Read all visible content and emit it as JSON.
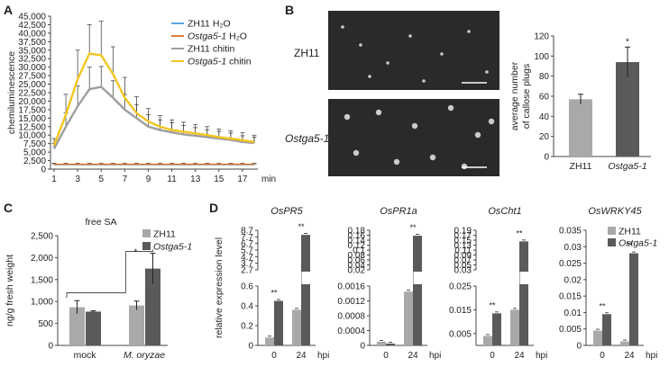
{
  "panel_letters": {
    "a": "A",
    "b": "B",
    "c": "C",
    "d": "D"
  },
  "colors": {
    "zh11_h2o": "#5ba7e0",
    "ostga_h2o": "#e07b39",
    "zh11_chitin": "#9e9e9e",
    "ostga_chitin": "#f2c61f",
    "bar_light": "#a9a9a9",
    "bar_dark": "#5a5a5a",
    "micrograph_bg": "#2a2a2a"
  },
  "panel_b_images": {
    "row1_label": "ZH11",
    "row2_label": "Ostga5-1"
  },
  "chart_data": [
    {
      "id": "A",
      "type": "line",
      "ylabel": "chemiluminescence",
      "xlabel": "min",
      "x": [
        1,
        2,
        3,
        4,
        5,
        6,
        7,
        8,
        9,
        10,
        11,
        12,
        13,
        14,
        15,
        16,
        17,
        18
      ],
      "xticks": [
        "1",
        "3",
        "5",
        "7",
        "9",
        "11",
        "13",
        "15",
        "17"
      ],
      "yticks": [
        "0",
        "2,500",
        "5,000",
        "7,500",
        "10,000",
        "12,500",
        "15,000",
        "17,500",
        "20,000",
        "22,500",
        "25,000",
        "27,500",
        "30,000",
        "32,500",
        "35,000",
        "37,500",
        "40,000",
        "42,500",
        "45,000"
      ],
      "ylim": [
        0,
        45000
      ],
      "series": [
        {
          "name": "ZH11 H₂O",
          "color_key": "zh11_h2o",
          "values": [
            1300,
            1300,
            1300,
            1300,
            1300,
            1300,
            1300,
            1300,
            1300,
            1300,
            1300,
            1300,
            1300,
            1300,
            1300,
            1300,
            1300,
            1300
          ],
          "err": [
            300,
            300,
            300,
            300,
            300,
            300,
            300,
            300,
            300,
            300,
            300,
            300,
            300,
            300,
            300,
            300,
            300,
            300
          ]
        },
        {
          "name": "Ostga5-1 H₂O",
          "italic_prefix": "Ostga5-1",
          "color_key": "ostga_h2o",
          "values": [
            1400,
            1400,
            1400,
            1400,
            1400,
            1400,
            1400,
            1400,
            1400,
            1400,
            1400,
            1400,
            1400,
            1400,
            1400,
            1400,
            1400,
            1400
          ],
          "err": [
            300,
            300,
            300,
            300,
            300,
            300,
            300,
            300,
            300,
            300,
            300,
            300,
            300,
            300,
            300,
            300,
            300,
            300
          ]
        },
        {
          "name": "ZH11 chitin",
          "color_key": "zh11_chitin",
          "values": [
            6000,
            12500,
            18500,
            23500,
            24200,
            21000,
            17500,
            15000,
            12500,
            11500,
            10800,
            10200,
            9800,
            9400,
            9000,
            8600,
            8000,
            7700
          ],
          "err": [
            1500,
            4000,
            6000,
            6500,
            6000,
            5000,
            4500,
            4000,
            3500,
            3000,
            2800,
            2600,
            2400,
            2200,
            2100,
            2000,
            1800,
            1700
          ]
        },
        {
          "name": "Ostga5-1 chitin",
          "italic_prefix": "Ostga5-1",
          "color_key": "ostga_chitin",
          "values": [
            7000,
            16000,
            26500,
            34000,
            33500,
            28000,
            21000,
            16500,
            14000,
            12500,
            11500,
            11000,
            10500,
            10000,
            9400,
            9000,
            8500,
            8000
          ],
          "err": [
            2000,
            6000,
            8500,
            8500,
            10000,
            8000,
            6000,
            4800,
            3800,
            3200,
            3000,
            2800,
            2600,
            2500,
            2400,
            2300,
            2200,
            2000
          ]
        }
      ]
    },
    {
      "id": "B",
      "type": "bar",
      "ylabel": "average number of callose plugs",
      "ylabel_lines": [
        "average number",
        "of callose plugs"
      ],
      "categories": [
        "ZH11",
        "Ostga5-1"
      ],
      "values": [
        57,
        94
      ],
      "err": [
        5,
        15
      ],
      "yticks": [
        "0",
        "20",
        "40",
        "60",
        "80",
        "100",
        "120"
      ],
      "ylim": [
        0,
        120
      ],
      "annotations": [
        "*"
      ]
    },
    {
      "id": "C",
      "type": "bar",
      "title": "free SA",
      "ylabel": "ng/g fresh weight",
      "categories": [
        "mock",
        "M. oryzae"
      ],
      "series": [
        {
          "name": "ZH11",
          "values": [
            870,
            910
          ],
          "err": [
            150,
            100
          ]
        },
        {
          "name": "Ostga5-1",
          "values": [
            770,
            1750
          ],
          "err": [
            20,
            350
          ]
        }
      ],
      "yticks": [
        "0",
        "500",
        "1,000",
        "1,500",
        "2,000",
        "2,500"
      ],
      "ylim": [
        0,
        2500
      ],
      "annotations": [
        "*"
      ]
    },
    {
      "id": "D",
      "type": "bar",
      "ylabel": "relative expression level",
      "xlabel": "hpi",
      "categories": [
        "0",
        "24"
      ],
      "legend": [
        "ZH11",
        "Ostga5-1"
      ],
      "annotation": "**",
      "genes": [
        {
          "name": "OsPR5",
          "series": [
            {
              "name": "ZH11",
              "values": [
                0.08,
                0.36
              ]
            },
            {
              "name": "Ostga5-1",
              "values": [
                0.45,
                8.0
              ]
            }
          ],
          "upper_ticks": [
            "2.7",
            "3.7",
            "4.7",
            "5.7",
            "6.7",
            "7.7",
            "8.7"
          ],
          "upper_range": [
            2.7,
            8.7
          ],
          "lower_ticks": [
            "0",
            "0.2",
            "0.4",
            "0.6"
          ],
          "lower_range": [
            0,
            0.6
          ]
        },
        {
          "name": "OsPR1a",
          "series": [
            {
              "name": "ZH11",
              "values": [
                0.0001,
                0.00145
              ]
            },
            {
              "name": "Ostga5-1",
              "values": [
                5e-05,
                0.158
              ]
            }
          ],
          "upper_ticks": [
            "0.02",
            "0.04",
            "0.06",
            "0.08",
            "0.1",
            "0.12",
            "0.14",
            "0.16",
            "0.18"
          ],
          "upper_range": [
            0.02,
            0.18
          ],
          "lower_ticks": [
            "0",
            "0.0004",
            "0.0008",
            "0.0012",
            "0.0016"
          ],
          "lower_range": [
            0,
            0.0016
          ]
        },
        {
          "name": "OsCht1",
          "series": [
            {
              "name": "ZH11",
              "values": [
                0.004,
                0.015
              ]
            },
            {
              "name": "Ostga5-1",
              "values": [
                0.0135,
                0.145
              ]
            }
          ],
          "upper_ticks": [
            "0.03",
            "0.05",
            "0.07",
            "0.09",
            "0.11",
            "0.13",
            "0.15",
            "0.17",
            "0.19"
          ],
          "upper_range": [
            0.03,
            0.19
          ],
          "lower_ticks": [
            "0.005",
            "0.015",
            "0.025"
          ],
          "lower_range": [
            0,
            0.025
          ]
        },
        {
          "name": "OsWRKY45",
          "series": [
            {
              "name": "ZH11",
              "values": [
                0.0045,
                0.0012
              ]
            },
            {
              "name": "Ostga5-1",
              "values": [
                0.0095,
                0.028
              ]
            }
          ],
          "ticks": [
            "0",
            "0.005",
            "0.01",
            "0.015",
            "0.02",
            "0.025",
            "0.03",
            "0.035"
          ],
          "range": [
            0,
            0.035
          ]
        }
      ]
    }
  ]
}
